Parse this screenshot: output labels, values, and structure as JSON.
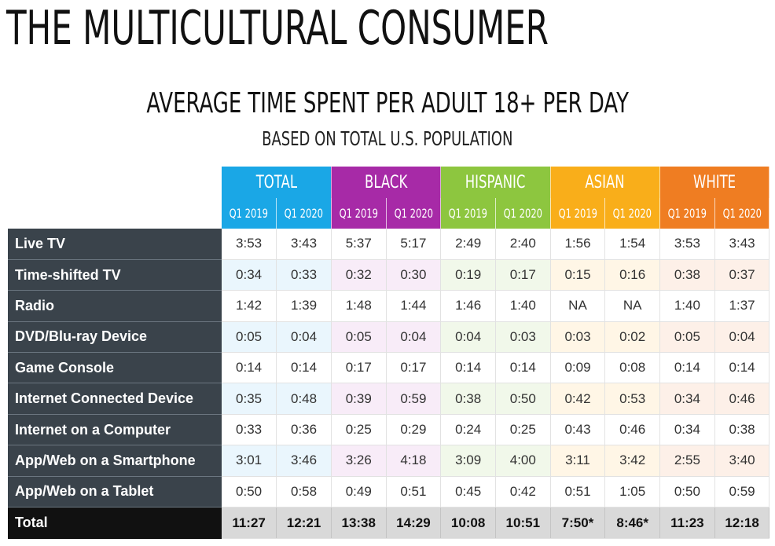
{
  "header": {
    "title": "THE MULTICULTURAL CONSUMER",
    "subtitle": "AVERAGE TIME SPENT PER ADULT 18+ PER DAY",
    "subsubtitle": "BASED ON TOTAL U.S. POPULATION"
  },
  "chart_data": {
    "type": "table",
    "title": "AVERAGE TIME SPENT PER ADULT 18+ PER DAY",
    "subtitle": "BASED ON TOTAL U.S. POPULATION",
    "groups": [
      {
        "name": "TOTAL",
        "color": "#1aa7e6"
      },
      {
        "name": "BLACK",
        "color": "#a72aa7"
      },
      {
        "name": "HISPANIC",
        "color": "#8dc63f"
      },
      {
        "name": "ASIAN",
        "color": "#f9ae1a"
      },
      {
        "name": "WHITE",
        "color": "#ef7d22"
      }
    ],
    "periods": [
      "Q1 2019",
      "Q1 2020"
    ],
    "rows": [
      {
        "label": "Live TV",
        "values": [
          "3:53",
          "3:43",
          "5:37",
          "5:17",
          "2:49",
          "2:40",
          "1:56",
          "1:54",
          "3:53",
          "3:43"
        ]
      },
      {
        "label": "Time-shifted TV",
        "values": [
          "0:34",
          "0:33",
          "0:32",
          "0:30",
          "0:19",
          "0:17",
          "0:15",
          "0:16",
          "0:38",
          "0:37"
        ]
      },
      {
        "label": "Radio",
        "values": [
          "1:42",
          "1:39",
          "1:48",
          "1:44",
          "1:46",
          "1:40",
          "NA",
          "NA",
          "1:40",
          "1:37"
        ]
      },
      {
        "label": "DVD/Blu-ray Device",
        "values": [
          "0:05",
          "0:04",
          "0:05",
          "0:04",
          "0:04",
          "0:03",
          "0:03",
          "0:02",
          "0:05",
          "0:04"
        ]
      },
      {
        "label": "Game Console",
        "values": [
          "0:14",
          "0:14",
          "0:17",
          "0:17",
          "0:14",
          "0:14",
          "0:09",
          "0:08",
          "0:14",
          "0:14"
        ]
      },
      {
        "label": "Internet Connected Device",
        "values": [
          "0:35",
          "0:48",
          "0:39",
          "0:59",
          "0:38",
          "0:50",
          "0:42",
          "0:53",
          "0:34",
          "0:46"
        ]
      },
      {
        "label": "Internet on a Computer",
        "values": [
          "0:33",
          "0:36",
          "0:25",
          "0:29",
          "0:24",
          "0:25",
          "0:43",
          "0:46",
          "0:34",
          "0:38"
        ]
      },
      {
        "label": "App/Web on a Smartphone",
        "values": [
          "3:01",
          "3:46",
          "3:26",
          "4:18",
          "3:09",
          "4:00",
          "3:11",
          "3:42",
          "2:55",
          "3:40"
        ]
      },
      {
        "label": "App/Web on a Tablet",
        "values": [
          "0:50",
          "0:58",
          "0:49",
          "0:51",
          "0:45",
          "0:42",
          "0:51",
          "1:05",
          "0:50",
          "0:59"
        ]
      }
    ],
    "total": {
      "label": "Total",
      "values": [
        "11:27",
        "12:21",
        "13:38",
        "14:29",
        "10:08",
        "10:51",
        "7:50*",
        "8:46*",
        "11:23",
        "12:18"
      ]
    }
  }
}
